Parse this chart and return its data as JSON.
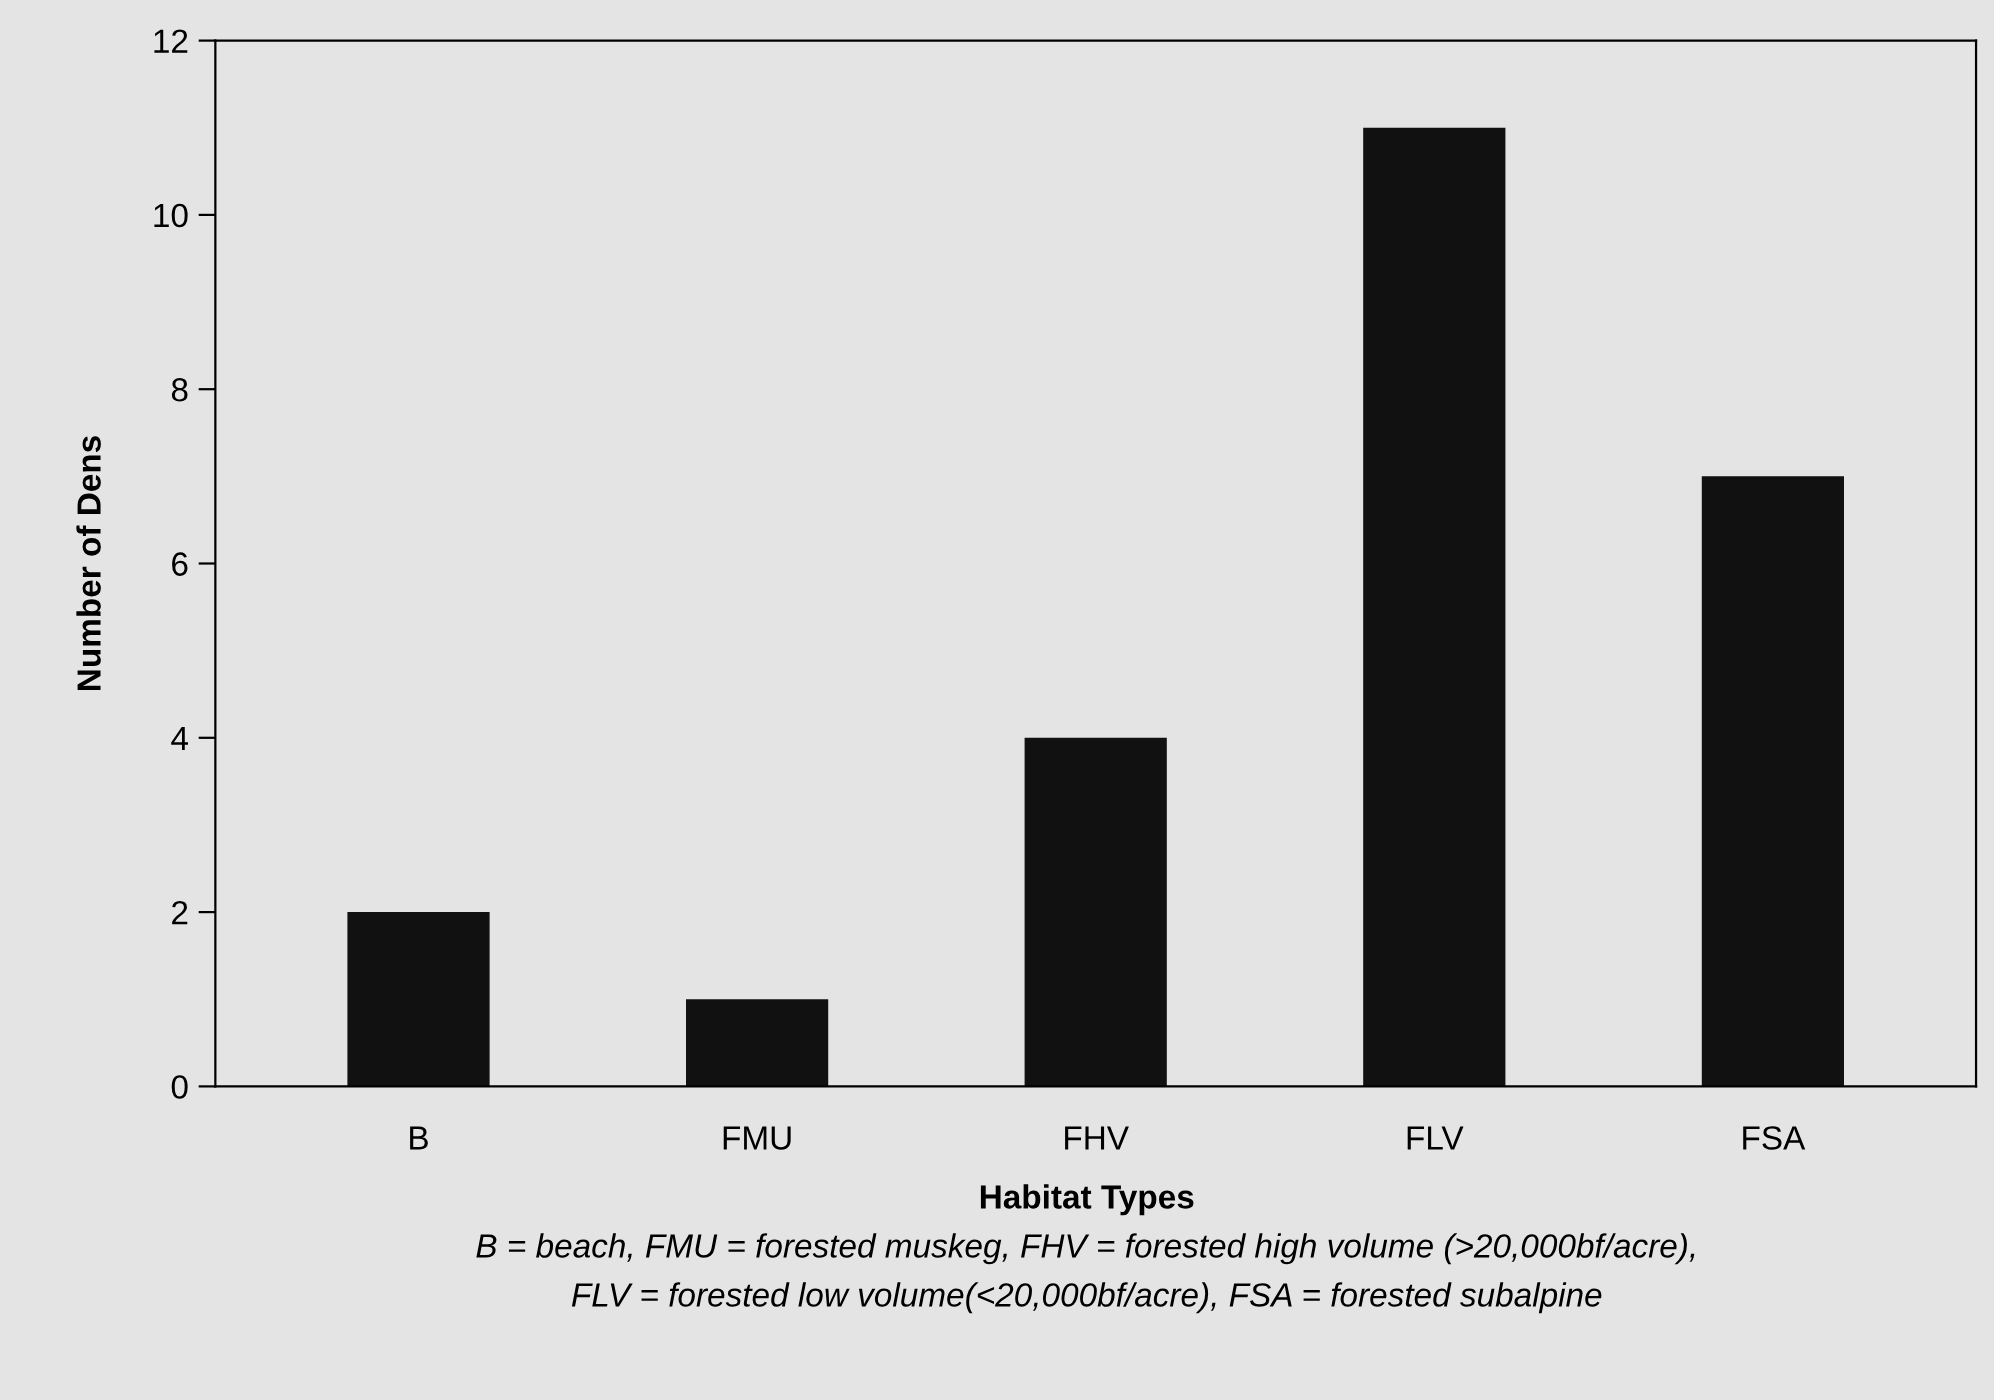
{
  "chart_data": {
    "type": "bar",
    "categories": [
      "B",
      "FMU",
      "FHV",
      "FLV",
      "FSA"
    ],
    "values": [
      2,
      1,
      4,
      11,
      7
    ],
    "color": "#111111",
    "xlabel": "Habitat Types",
    "ylabel": "Number of Dens",
    "ylim": [
      0,
      12
    ],
    "yticks": [
      0,
      2,
      4,
      6,
      8,
      10,
      12
    ],
    "grid": false,
    "legend": false,
    "annotations": [
      "B = beach, FMU = forested muskeg, FHV = forested high volume (>20,000bf/acre),",
      "FLV = forested low volume(<20,000bf/acre), FSA = forested subalpine"
    ]
  }
}
